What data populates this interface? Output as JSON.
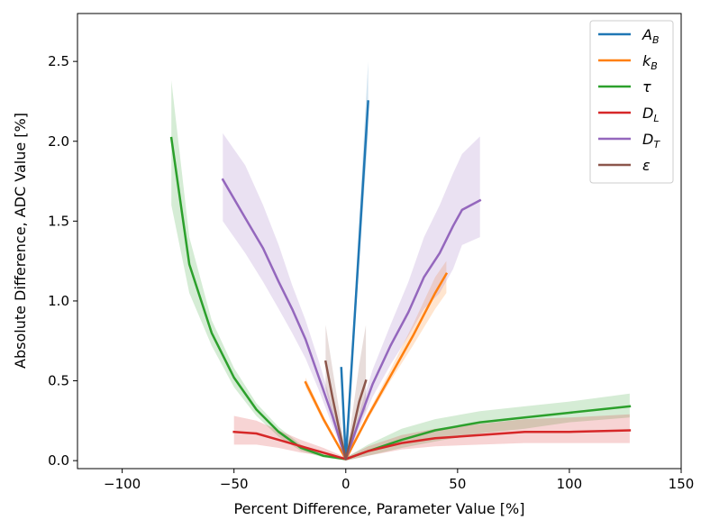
{
  "chart_data": {
    "type": "line",
    "title": "",
    "xlabel": "Percent Difference, Parameter Value [%]",
    "ylabel": "Absolute Difference, ADC Value [%]",
    "xlim": [
      -120,
      150
    ],
    "ylim": [
      -0.05,
      2.8
    ],
    "xticks": [
      -100,
      -50,
      0,
      50,
      100,
      150
    ],
    "xtick_labels": [
      "−100",
      "−50",
      "0",
      "50",
      "100",
      "150"
    ],
    "yticks": [
      0.0,
      0.5,
      1.0,
      1.5,
      2.0,
      2.5
    ],
    "ytick_labels": [
      "0.0",
      "0.5",
      "1.0",
      "1.5",
      "2.0",
      "2.5"
    ],
    "grid": false,
    "legend_position": "top-right",
    "series": [
      {
        "name": "A_B",
        "label_main": "A",
        "label_sub": "B",
        "color": "#1f77b4",
        "x": [
          -2,
          0,
          10
        ],
        "y": [
          0.58,
          0.01,
          2.25
        ],
        "band_upper": [
          0.58,
          0.02,
          2.5
        ],
        "band_lower": [
          0.58,
          0.0,
          2.05
        ]
      },
      {
        "name": "k_B",
        "label_main": "k",
        "label_sub": "B",
        "color": "#ff7f0e",
        "x": [
          -18,
          -10,
          0,
          10,
          20,
          30,
          40,
          45
        ],
        "y": [
          0.49,
          0.26,
          0.01,
          0.28,
          0.53,
          0.78,
          1.05,
          1.17
        ],
        "band_upper": [
          0.52,
          0.28,
          0.02,
          0.3,
          0.57,
          0.85,
          1.15,
          1.25
        ],
        "band_lower": [
          0.46,
          0.24,
          0.0,
          0.26,
          0.5,
          0.72,
          0.95,
          1.05
        ]
      },
      {
        "name": "tau",
        "label_main": "τ",
        "label_sub": "",
        "color": "#2ca02c",
        "x": [
          -78,
          -70,
          -60,
          -50,
          -40,
          -30,
          -20,
          -10,
          0,
          10,
          25,
          40,
          60,
          80,
          100,
          127
        ],
        "y": [
          2.02,
          1.23,
          0.8,
          0.52,
          0.32,
          0.18,
          0.08,
          0.03,
          0.01,
          0.06,
          0.13,
          0.19,
          0.24,
          0.27,
          0.3,
          0.34
        ],
        "band_upper": [
          2.38,
          1.4,
          0.88,
          0.58,
          0.36,
          0.21,
          0.1,
          0.04,
          0.02,
          0.1,
          0.2,
          0.26,
          0.31,
          0.34,
          0.37,
          0.42
        ],
        "band_lower": [
          1.6,
          1.05,
          0.72,
          0.46,
          0.28,
          0.15,
          0.06,
          0.02,
          0.0,
          0.03,
          0.08,
          0.12,
          0.17,
          0.2,
          0.24,
          0.27
        ]
      },
      {
        "name": "D_L",
        "label_main": "D",
        "label_sub": "L",
        "color": "#d62728",
        "x": [
          -50,
          -40,
          -30,
          -20,
          -10,
          0,
          10,
          25,
          40,
          60,
          80,
          100,
          127
        ],
        "y": [
          0.18,
          0.17,
          0.13,
          0.09,
          0.05,
          0.01,
          0.06,
          0.11,
          0.14,
          0.16,
          0.18,
          0.18,
          0.19
        ],
        "band_upper": [
          0.28,
          0.25,
          0.19,
          0.13,
          0.08,
          0.02,
          0.09,
          0.16,
          0.2,
          0.23,
          0.26,
          0.27,
          0.29
        ],
        "band_lower": [
          0.1,
          0.1,
          0.08,
          0.05,
          0.03,
          0.0,
          0.03,
          0.07,
          0.09,
          0.1,
          0.11,
          0.11,
          0.11
        ]
      },
      {
        "name": "D_T",
        "label_main": "D",
        "label_sub": "T",
        "color": "#9467bd",
        "x": [
          -55,
          -45,
          -37,
          -30,
          -24,
          -18,
          -12,
          -6,
          0,
          6,
          12,
          20,
          28,
          35,
          42,
          48,
          52,
          60
        ],
        "y": [
          1.76,
          1.52,
          1.33,
          1.12,
          0.95,
          0.76,
          0.52,
          0.28,
          0.01,
          0.25,
          0.48,
          0.72,
          0.93,
          1.15,
          1.3,
          1.47,
          1.57,
          1.63
        ],
        "band_upper": [
          2.05,
          1.85,
          1.6,
          1.35,
          1.1,
          0.88,
          0.62,
          0.34,
          0.02,
          0.3,
          0.57,
          0.85,
          1.12,
          1.4,
          1.6,
          1.8,
          1.92,
          2.03
        ],
        "band_lower": [
          1.5,
          1.3,
          1.12,
          0.95,
          0.8,
          0.64,
          0.44,
          0.22,
          0.0,
          0.2,
          0.4,
          0.6,
          0.78,
          0.95,
          1.05,
          1.2,
          1.35,
          1.4
        ]
      },
      {
        "name": "epsilon",
        "label_main": "ε",
        "label_sub": "",
        "color": "#8c564b",
        "x": [
          -9,
          -6,
          -3,
          0,
          3,
          6,
          9
        ],
        "y": [
          0.62,
          0.4,
          0.2,
          0.01,
          0.18,
          0.37,
          0.5
        ],
        "band_upper": [
          0.85,
          0.58,
          0.32,
          0.02,
          0.3,
          0.6,
          0.85
        ],
        "band_lower": [
          0.45,
          0.28,
          0.12,
          0.0,
          0.1,
          0.24,
          0.32
        ]
      }
    ]
  }
}
